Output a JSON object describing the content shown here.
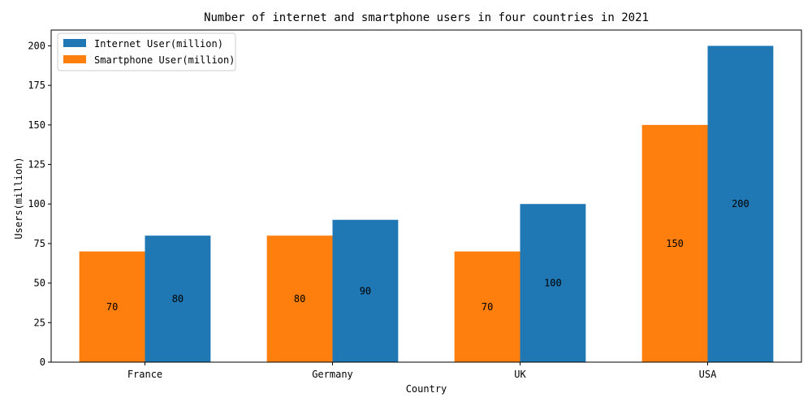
{
  "chart_data": {
    "type": "bar",
    "title": "Number of internet and smartphone users in four countries in 2021",
    "xlabel": "Country",
    "ylabel": "Users(million)",
    "categories": [
      "France",
      "Germany",
      "UK",
      "USA"
    ],
    "ylim": [
      0,
      210
    ],
    "yticks": [
      0,
      25,
      50,
      75,
      100,
      125,
      150,
      175,
      200
    ],
    "grid": false,
    "legend_position": "top-left",
    "series": [
      {
        "name": "Smartphone User(million)",
        "values": [
          70,
          80,
          70,
          150
        ],
        "color": "#ff7f0e"
      },
      {
        "name": "Internet User(million)",
        "values": [
          80,
          90,
          100,
          200
        ],
        "color": "#1f77b4"
      }
    ],
    "legend_order": [
      "Internet User(million)",
      "Smartphone User(million)"
    ],
    "data_labels": true
  }
}
